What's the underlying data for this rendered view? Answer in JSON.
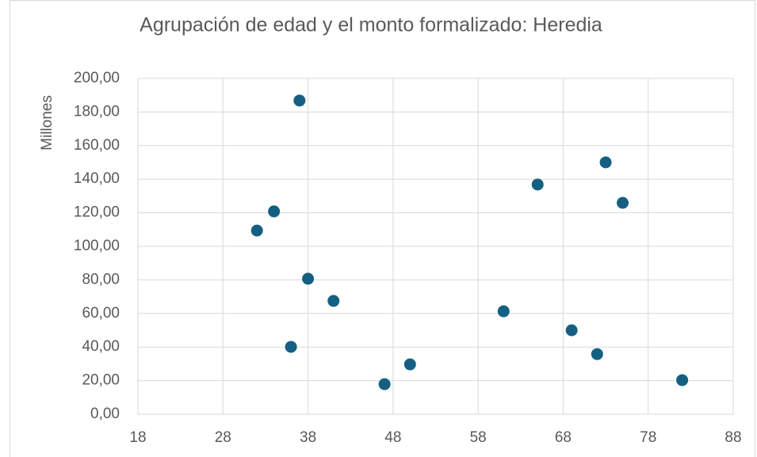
{
  "chart_data": {
    "type": "scatter",
    "title": "Agrupación de edad y el monto formalizado: Heredia",
    "y_label": "Millones",
    "color": "#156082",
    "grid": true,
    "x": [
      32,
      34,
      37,
      36,
      38,
      41,
      47,
      50,
      61,
      65,
      69,
      72,
      73,
      75,
      82
    ],
    "values": [
      109.4,
      120.8,
      186.8,
      40.1,
      80.7,
      67.5,
      17.9,
      29.7,
      61.3,
      136.8,
      50,
      35.8,
      150,
      125.9,
      20.3
    ],
    "xlim": [
      18,
      88
    ],
    "xticks": [
      18,
      28,
      38,
      48,
      58,
      68,
      78,
      88
    ],
    "ylim": [
      0,
      200
    ],
    "yticks": [
      {
        "value": 0,
        "label": "0,00"
      },
      {
        "value": 20,
        "label": "20,00"
      },
      {
        "value": 40,
        "label": "40,00"
      },
      {
        "value": 60,
        "label": "60,00"
      },
      {
        "value": 80,
        "label": "80,00"
      },
      {
        "value": 100,
        "label": "100,00"
      },
      {
        "value": 120,
        "label": "120,00"
      },
      {
        "value": 140,
        "label": "140,00"
      },
      {
        "value": 160,
        "label": "160,00"
      },
      {
        "value": 180,
        "label": "180,00"
      },
      {
        "value": 200,
        "label": "200,00"
      }
    ]
  }
}
